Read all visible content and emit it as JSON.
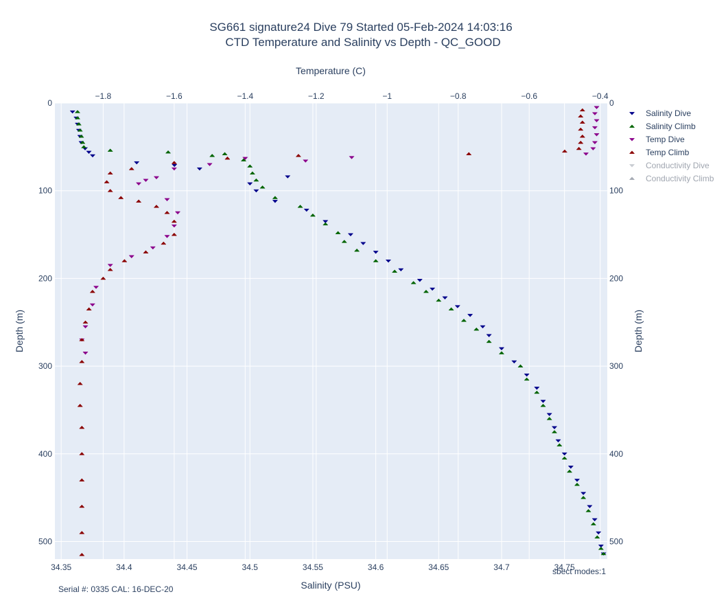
{
  "chart_data": {
    "type": "scatter",
    "title": [
      "SG661 signature24 Dive 79 Started 05-Feb-2024 14:03:16",
      "CTD Temperature and Salinity vs Depth - QC_GOOD"
    ],
    "xlabel": "Salinity (PSU)",
    "x2label": "Temperature (C)",
    "ylabel": "Depth (m)",
    "y2label": "Depth (m)",
    "xlim": [
      34.345,
      34.784
    ],
    "x2lim": [
      -1.936,
      -0.38
    ],
    "ylim": [
      520,
      0
    ],
    "x_ticks": [
      "34.35",
      "34.4",
      "34.45",
      "34.5",
      "34.55",
      "34.6",
      "34.65",
      "34.7",
      "34.75"
    ],
    "x_tick_values": [
      34.35,
      34.4,
      34.45,
      34.5,
      34.55,
      34.6,
      34.65,
      34.7,
      34.75
    ],
    "x2_ticks": [
      "−1.8",
      "−1.6",
      "−1.4",
      "−1.2",
      "−1",
      "−0.8",
      "−0.6",
      "−0.4"
    ],
    "x2_tick_values": [
      -1.8,
      -1.6,
      -1.4,
      -1.2,
      -1.0,
      -0.8,
      -0.6,
      -0.4
    ],
    "y_ticks": [
      "0",
      "100",
      "200",
      "300",
      "400",
      "500"
    ],
    "y_tick_values": [
      0,
      100,
      200,
      300,
      400,
      500
    ],
    "y2_ticks": [
      "0",
      "100",
      "200",
      "300",
      "400",
      "500"
    ],
    "grid": true,
    "legend_position": "right",
    "series": [
      {
        "name": "Salinity Dive",
        "axis": "salinity",
        "marker": "triangle-down",
        "color": "#00008b",
        "visible": true,
        "points": [
          [
            34.359,
            10
          ],
          [
            34.362,
            17
          ],
          [
            34.363,
            24
          ],
          [
            34.364,
            31
          ],
          [
            34.365,
            38
          ],
          [
            34.366,
            45
          ],
          [
            34.369,
            52
          ],
          [
            34.372,
            56
          ],
          [
            34.375,
            60
          ],
          [
            34.41,
            68
          ],
          [
            34.44,
            71
          ],
          [
            34.46,
            75
          ],
          [
            34.53,
            84
          ],
          [
            34.5,
            92
          ],
          [
            34.505,
            100
          ],
          [
            34.52,
            112
          ],
          [
            34.545,
            122
          ],
          [
            34.56,
            135
          ],
          [
            34.58,
            150
          ],
          [
            34.59,
            160
          ],
          [
            34.6,
            170
          ],
          [
            34.61,
            180
          ],
          [
            34.62,
            190
          ],
          [
            34.635,
            202
          ],
          [
            34.645,
            212
          ],
          [
            34.655,
            222
          ],
          [
            34.665,
            232
          ],
          [
            34.675,
            242
          ],
          [
            34.685,
            255
          ],
          [
            34.69,
            265
          ],
          [
            34.7,
            280
          ],
          [
            34.71,
            295
          ],
          [
            34.72,
            310
          ],
          [
            34.728,
            325
          ],
          [
            34.733,
            340
          ],
          [
            34.738,
            355
          ],
          [
            34.742,
            370
          ],
          [
            34.745,
            385
          ],
          [
            34.75,
            400
          ],
          [
            34.755,
            415
          ],
          [
            34.76,
            430
          ],
          [
            34.765,
            445
          ],
          [
            34.77,
            460
          ],
          [
            34.774,
            475
          ],
          [
            34.777,
            490
          ],
          [
            34.779,
            505
          ],
          [
            34.781,
            514
          ]
        ]
      },
      {
        "name": "Salinity Climb",
        "axis": "salinity",
        "marker": "triangle-up",
        "color": "#006400",
        "visible": true,
        "points": [
          [
            34.363,
            10
          ],
          [
            34.363,
            17
          ],
          [
            34.364,
            24
          ],
          [
            34.365,
            31
          ],
          [
            34.366,
            38
          ],
          [
            34.367,
            45
          ],
          [
            34.368,
            50
          ],
          [
            34.389,
            54
          ],
          [
            34.435,
            56
          ],
          [
            34.47,
            60
          ],
          [
            34.48,
            58
          ],
          [
            34.495,
            65
          ],
          [
            34.5,
            72
          ],
          [
            34.502,
            80
          ],
          [
            34.505,
            88
          ],
          [
            34.51,
            96
          ],
          [
            34.52,
            108
          ],
          [
            34.54,
            118
          ],
          [
            34.55,
            128
          ],
          [
            34.56,
            138
          ],
          [
            34.57,
            148
          ],
          [
            34.575,
            158
          ],
          [
            34.585,
            168
          ],
          [
            34.6,
            180
          ],
          [
            34.615,
            192
          ],
          [
            34.63,
            205
          ],
          [
            34.64,
            215
          ],
          [
            34.65,
            225
          ],
          [
            34.66,
            235
          ],
          [
            34.67,
            248
          ],
          [
            34.68,
            258
          ],
          [
            34.69,
            272
          ],
          [
            34.7,
            285
          ],
          [
            34.715,
            300
          ],
          [
            34.72,
            315
          ],
          [
            34.728,
            330
          ],
          [
            34.733,
            345
          ],
          [
            34.738,
            360
          ],
          [
            34.742,
            375
          ],
          [
            34.746,
            390
          ],
          [
            34.75,
            405
          ],
          [
            34.754,
            420
          ],
          [
            34.76,
            435
          ],
          [
            34.765,
            450
          ],
          [
            34.769,
            465
          ],
          [
            34.773,
            480
          ],
          [
            34.776,
            495
          ],
          [
            34.779,
            508
          ],
          [
            34.781,
            514
          ]
        ]
      },
      {
        "name": "Temp Dive",
        "axis": "temperature",
        "marker": "triangle-down",
        "color": "#8b008b",
        "visible": true,
        "points": [
          [
            -0.41,
            5
          ],
          [
            -0.415,
            12
          ],
          [
            -0.41,
            20
          ],
          [
            -0.415,
            28
          ],
          [
            -0.41,
            36
          ],
          [
            -0.415,
            45
          ],
          [
            -0.42,
            52
          ],
          [
            -0.44,
            58
          ],
          [
            -1.1,
            62
          ],
          [
            -1.23,
            66
          ],
          [
            -1.4,
            63
          ],
          [
            -1.5,
            70
          ],
          [
            -1.6,
            75
          ],
          [
            -1.65,
            85
          ],
          [
            -1.68,
            88
          ],
          [
            -1.7,
            92
          ],
          [
            -1.62,
            110
          ],
          [
            -1.59,
            125
          ],
          [
            -1.6,
            140
          ],
          [
            -1.62,
            152
          ],
          [
            -1.66,
            165
          ],
          [
            -1.72,
            175
          ],
          [
            -1.78,
            185
          ],
          [
            -1.82,
            210
          ],
          [
            -1.83,
            230
          ],
          [
            -1.85,
            255
          ],
          [
            -1.86,
            270
          ],
          [
            -1.85,
            285
          ]
        ]
      },
      {
        "name": "Temp Climb",
        "axis": "temperature",
        "marker": "triangle-up",
        "color": "#8b0000",
        "visible": true,
        "points": [
          [
            -0.45,
            8
          ],
          [
            -0.455,
            15
          ],
          [
            -0.45,
            22
          ],
          [
            -0.455,
            30
          ],
          [
            -0.45,
            38
          ],
          [
            -0.455,
            45
          ],
          [
            -0.46,
            52
          ],
          [
            -0.5,
            55
          ],
          [
            -0.77,
            58
          ],
          [
            -1.25,
            60
          ],
          [
            -1.45,
            63
          ],
          [
            -1.6,
            68
          ],
          [
            -1.72,
            75
          ],
          [
            -1.78,
            80
          ],
          [
            -1.79,
            90
          ],
          [
            -1.78,
            100
          ],
          [
            -1.75,
            108
          ],
          [
            -1.7,
            112
          ],
          [
            -1.65,
            118
          ],
          [
            -1.62,
            125
          ],
          [
            -1.6,
            135
          ],
          [
            -1.6,
            150
          ],
          [
            -1.63,
            160
          ],
          [
            -1.68,
            170
          ],
          [
            -1.74,
            180
          ],
          [
            -1.78,
            190
          ],
          [
            -1.8,
            200
          ],
          [
            -1.83,
            215
          ],
          [
            -1.84,
            235
          ],
          [
            -1.85,
            250
          ],
          [
            -1.86,
            270
          ],
          [
            -1.86,
            295
          ],
          [
            -1.865,
            320
          ],
          [
            -1.865,
            345
          ],
          [
            -1.86,
            370
          ],
          [
            -1.86,
            400
          ],
          [
            -1.86,
            430
          ],
          [
            -1.86,
            460
          ],
          [
            -1.86,
            490
          ],
          [
            -1.86,
            515
          ]
        ]
      },
      {
        "name": "Conductivity Dive",
        "axis": "salinity",
        "marker": "triangle-down",
        "color": "#c8ccd2",
        "visible": false,
        "points": []
      },
      {
        "name": "Conductivity Climb",
        "axis": "salinity",
        "marker": "triangle-up",
        "color": "#a5aab3",
        "visible": false,
        "points": []
      }
    ],
    "annotations": {
      "serial": "Serial #: 0335  CAL: 16-DEC-20",
      "spect": "sbect modes:1"
    }
  }
}
